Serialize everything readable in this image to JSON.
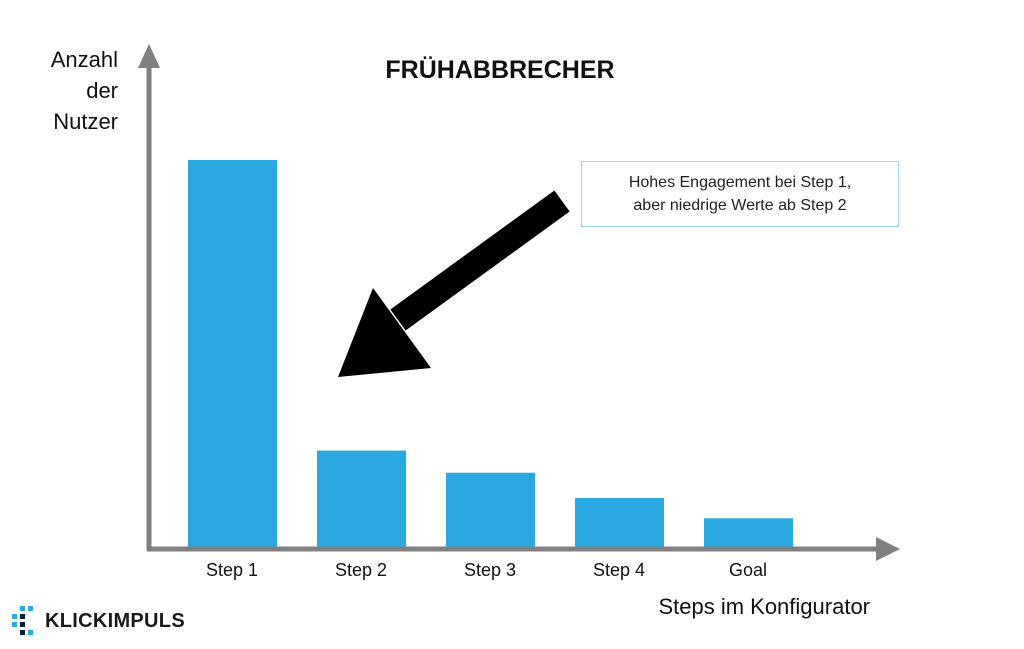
{
  "chart_data": {
    "type": "bar",
    "title": "FRÜHABBRECHER",
    "ylabel_lines": [
      "Anzahl",
      "der",
      "Nutzer"
    ],
    "xlabel": "Steps im Konfigurator",
    "categories": [
      "Step 1",
      "Step 2",
      "Step 3",
      "Step 4",
      "Goal"
    ],
    "values": [
      100,
      25.3,
      19.6,
      13.1,
      7.9
    ],
    "ylim": [
      0,
      100
    ],
    "y_ticks_shown": false,
    "grid": false,
    "bar_color": "#2aa8e0",
    "axis_color": "#808080",
    "annotation": {
      "lines": [
        "Hohes Engagement bei Step 1,",
        "aber niedrige Werte ab Step 2"
      ],
      "points_to": "Step 2",
      "arrow_color": "#000000"
    }
  },
  "brand": {
    "name": "KLICKIMPULS",
    "accent_colors": [
      "#2aa8e0",
      "#0a1f3c"
    ]
  }
}
